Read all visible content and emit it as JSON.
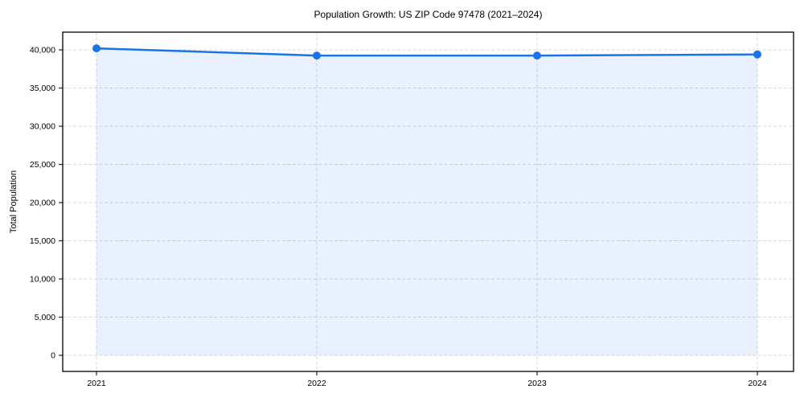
{
  "chart_data": {
    "type": "line",
    "title": "Population Growth: US ZIP Code 97478 (2021–2024)",
    "xlabel": "",
    "ylabel": "Total Population",
    "x": [
      "2021",
      "2022",
      "2023",
      "2024"
    ],
    "series": [
      {
        "name": "Total Population",
        "values": [
          40200,
          39250,
          39250,
          39400
        ]
      }
    ],
    "yticks": [
      0,
      5000,
      10000,
      15000,
      20000,
      25000,
      30000,
      35000,
      40000
    ],
    "ytick_labels": [
      "0",
      "5,000",
      "10,000",
      "15,000",
      "20,000",
      "25,000",
      "30,000",
      "35,000",
      "40,000"
    ],
    "ylim": [
      -2100,
      42300
    ],
    "grid": "dashed-both-axes",
    "legend": "none",
    "marker": "circle",
    "colors": {
      "line": "#1a73e8",
      "marker": "#1a73e8",
      "area_fill": "rgba(26,115,232,0.10)",
      "grid": "#d9d9d9",
      "spine": "#000000",
      "tick": "#262626",
      "background": "#ffffff"
    }
  }
}
